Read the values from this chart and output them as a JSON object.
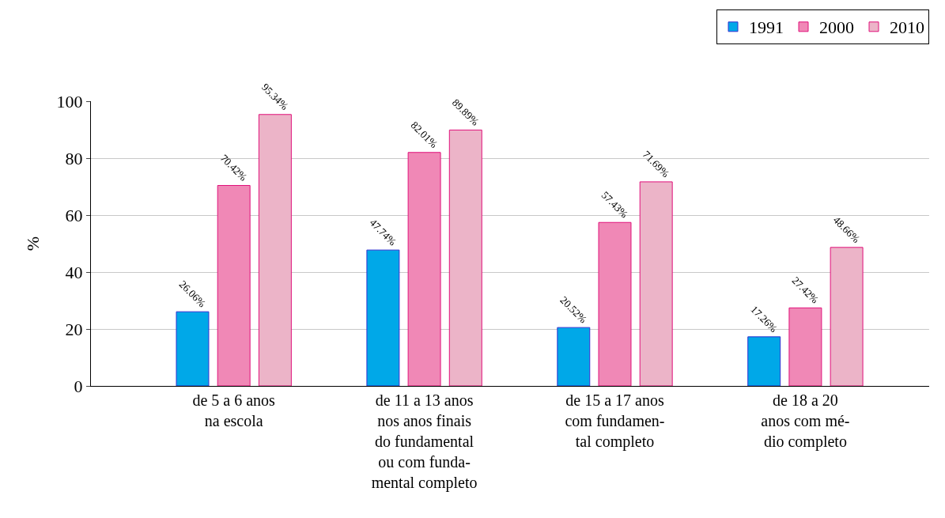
{
  "chart_data": {
    "type": "bar",
    "ylabel": "%",
    "categories": [
      "de 5 a 6 anos\nna escola",
      "de 11 a 13 anos\nnos anos finais\ndo fundamental\nou com funda-\nmental completo",
      "de 15 a 17 anos\ncom fundamen-\ntal completo",
      "de 18 a 20\nanos com mé-\ndio completo"
    ],
    "series": [
      {
        "name": "1991",
        "color": "#00a8e8",
        "values": [
          26.06,
          47.74,
          20.52,
          17.26
        ],
        "value_labels": [
          "26.06%",
          "47.74%",
          "20.52%",
          "17.26%"
        ]
      },
      {
        "name": "2000",
        "color": "#f088b6",
        "values": [
          70.42,
          82.01,
          57.43,
          27.42
        ],
        "value_labels": [
          "70.42%",
          "82.01%",
          "57.43%",
          "27.42%"
        ]
      },
      {
        "name": "2010",
        "color": "#ecb4c8",
        "values": [
          95.34,
          89.89,
          71.69,
          48.66
        ],
        "value_labels": [
          "95.34%",
          "89.89%",
          "71.69%",
          "48.66%"
        ]
      }
    ],
    "ylim": [
      0,
      100
    ],
    "yticks": [
      0,
      20,
      40,
      60,
      80,
      100
    ],
    "grid": "y",
    "legend": "top right"
  }
}
